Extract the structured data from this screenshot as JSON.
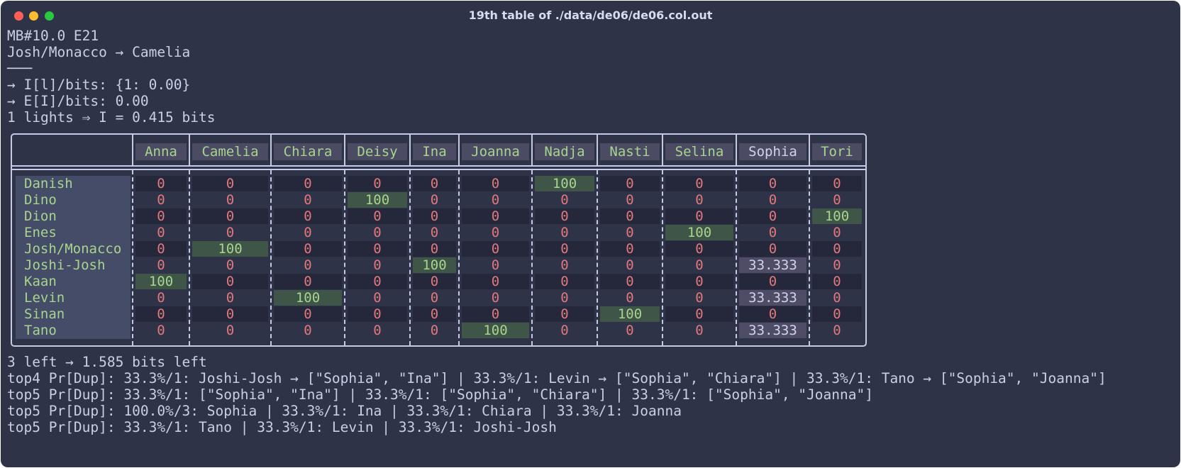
{
  "window": {
    "title": "19th table of ./data/de06/de06.col.out"
  },
  "header_lines": [
    "MB#10.0 E21",
    "Josh/Monacco → Camelia",
    "───",
    "→ I[l]/bits: {1: 0.00}",
    "→ E[I]/bits: 0.00",
    "1 lights ⇒ I = 0.415 bits"
  ],
  "table": {
    "columns": [
      "Anna",
      "Camelia",
      "Chiara",
      "Deisy",
      "Ina",
      "Joanna",
      "Nadja",
      "Nasti",
      "Selina",
      "Sophia",
      "Tori"
    ],
    "rows": [
      {
        "name": "Danish",
        "cells": [
          "0",
          "0",
          "0",
          "0",
          "0",
          "0",
          "100",
          "0",
          "0",
          "0",
          "0"
        ]
      },
      {
        "name": "Dino",
        "cells": [
          "0",
          "0",
          "0",
          "100",
          "0",
          "0",
          "0",
          "0",
          "0",
          "0",
          "0"
        ]
      },
      {
        "name": "Dion",
        "cells": [
          "0",
          "0",
          "0",
          "0",
          "0",
          "0",
          "0",
          "0",
          "0",
          "0",
          "100"
        ]
      },
      {
        "name": "Enes",
        "cells": [
          "0",
          "0",
          "0",
          "0",
          "0",
          "0",
          "0",
          "0",
          "100",
          "0",
          "0"
        ]
      },
      {
        "name": "Josh/Monacco",
        "cells": [
          "0",
          "100",
          "0",
          "0",
          "0",
          "0",
          "0",
          "0",
          "0",
          "0",
          "0"
        ]
      },
      {
        "name": "Joshi-Josh",
        "cells": [
          "0",
          "0",
          "0",
          "0",
          "100",
          "0",
          "0",
          "0",
          "0",
          "33.333",
          "0"
        ]
      },
      {
        "name": "Kaan",
        "cells": [
          "100",
          "0",
          "0",
          "0",
          "0",
          "0",
          "0",
          "0",
          "0",
          "0",
          "0"
        ]
      },
      {
        "name": "Levin",
        "cells": [
          "0",
          "0",
          "100",
          "0",
          "0",
          "0",
          "0",
          "0",
          "0",
          "33.333",
          "0"
        ]
      },
      {
        "name": "Sinan",
        "cells": [
          "0",
          "0",
          "0",
          "0",
          "0",
          "0",
          "0",
          "100",
          "0",
          "0",
          "0"
        ]
      },
      {
        "name": "Tano",
        "cells": [
          "0",
          "0",
          "0",
          "0",
          "0",
          "100",
          "0",
          "0",
          "0",
          "33.333",
          "0"
        ]
      }
    ],
    "colors": {
      "border": "#c4cbe6",
      "name_green": "#a8d48e",
      "zero_red": "#e0787c",
      "highlight_green_bg": "#3f5547",
      "highlight_purple_bg": "#4e4c66"
    }
  },
  "footer_lines": [
    "3 left → 1.585 bits left",
    "top4 Pr[Dup]: 33.3%/1: Joshi-Josh → [\"Sophia\", \"Ina\"] | 33.3%/1: Levin → [\"Sophia\", \"Chiara\"] | 33.3%/1: Tano → [\"Sophia\", \"Joanna\"]",
    "top5 Pr[Dup]: 33.3%/1: [\"Sophia\", \"Ina\"] | 33.3%/1: [\"Sophia\", \"Chiara\"] | 33.3%/1: [\"Sophia\", \"Joanna\"]",
    "top5 Pr[Dup]: 100.0%/3: Sophia | 33.3%/1: Ina | 33.3%/1: Chiara | 33.3%/1: Joanna",
    "top5 Pr[Dup]: 33.3%/1: Tano | 33.3%/1: Levin | 33.3%/1: Joshi-Josh"
  ]
}
